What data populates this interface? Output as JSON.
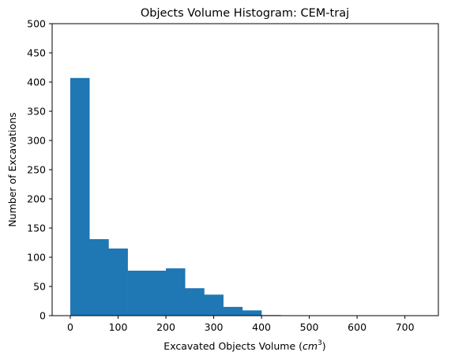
{
  "chart_data": {
    "type": "bar",
    "title": "Objects Volume Histogram: CEM-traj",
    "xlabel_main": "Excavated Objects Volume (",
    "xlabel_unit_base": "cm",
    "xlabel_unit_exp": "3",
    "xlabel_close": ")",
    "ylabel": "Number of Excavations",
    "xlim": [
      -38,
      770
    ],
    "ylim": [
      0,
      500
    ],
    "xticks": [
      0,
      100,
      200,
      300,
      400,
      500,
      600,
      700
    ],
    "yticks": [
      0,
      50,
      100,
      150,
      200,
      250,
      300,
      350,
      400,
      450,
      500
    ],
    "bin_edges": [
      0,
      40,
      80,
      120,
      160,
      200,
      240,
      280,
      320,
      360,
      400,
      440,
      480,
      520,
      560,
      600,
      640,
      680,
      720,
      760
    ],
    "values": [
      407,
      131,
      115,
      77,
      77,
      81,
      47,
      36,
      15,
      9,
      1,
      0,
      0,
      0,
      0,
      0,
      0,
      0,
      0
    ],
    "bar_color": "#1f77b4",
    "grid": false
  }
}
